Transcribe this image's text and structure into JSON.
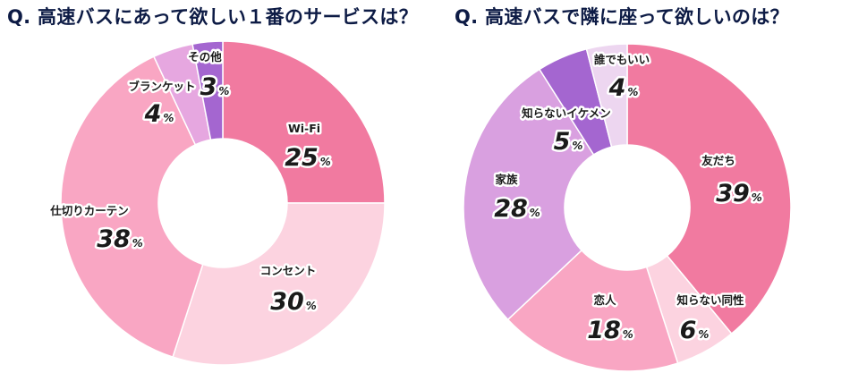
{
  "chart_data": [
    {
      "type": "pie",
      "title": "Q. 高速バスにあって欲しい１番のサービスは？",
      "slices": [
        {
          "label": "Wi-Fi",
          "value": 25,
          "display_value": "25",
          "unit": "%",
          "color": "#f17aa0"
        },
        {
          "label": "コンセント",
          "value": 30,
          "display_value": "30",
          "unit": "%",
          "color": "#fcd3e0"
        },
        {
          "label": "仕切りカーテン",
          "value": 38,
          "display_value": "38",
          "unit": "%",
          "color": "#f9a6c3"
        },
        {
          "label": "ブランケット",
          "value": 4,
          "display_value": "4",
          "unit": "%",
          "color": "#e6a7e0"
        },
        {
          "label": "その他",
          "value": 3,
          "display_value": "3",
          "unit": "%",
          "color": "#a466d0"
        }
      ]
    },
    {
      "type": "pie",
      "title": "Q. 高速バスで隣に座って欲しいのは？",
      "slices": [
        {
          "label": "友だち",
          "value": 39,
          "display_value": "39",
          "unit": "%",
          "color": "#f17aa0"
        },
        {
          "label": "知らない同性",
          "value": 6,
          "display_value": "6",
          "unit": "%",
          "color": "#fcd3e0"
        },
        {
          "label": "恋人",
          "value": 18,
          "display_value": "18",
          "unit": "%",
          "color": "#f9a6c3"
        },
        {
          "label": "家族",
          "value": 28,
          "display_value": "28",
          "unit": "%",
          "color": "#d9a0e0"
        },
        {
          "label": "知らないイケメン",
          "value": 5,
          "display_value": "5",
          "unit": "%",
          "color": "#a466d0"
        },
        {
          "label": "誰でもいい",
          "value": 4,
          "display_value": "4",
          "unit": "%",
          "color": "#edd6f0"
        }
      ]
    }
  ]
}
